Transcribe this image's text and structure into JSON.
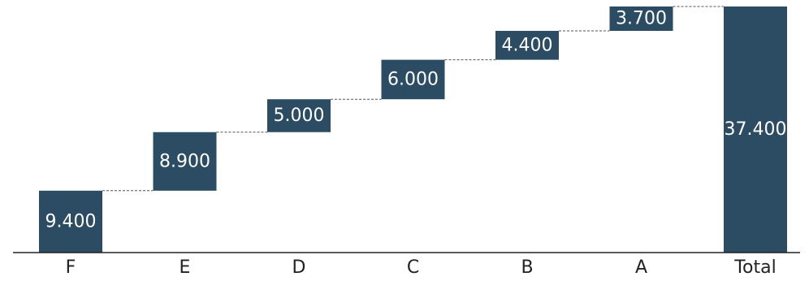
{
  "chart_data": {
    "type": "bar",
    "subtype": "waterfall",
    "categories": [
      "F",
      "E",
      "D",
      "C",
      "B",
      "A",
      "Total"
    ],
    "values": [
      9.4,
      8.9,
      5.0,
      6.0,
      4.4,
      3.7,
      37.4
    ],
    "labels": [
      "9.400",
      "8.900",
      "5.000",
      "6.000",
      "4.400",
      "3.700",
      "37.400"
    ],
    "total_index": 6,
    "ylim": [
      0,
      37.4
    ],
    "grid": false,
    "legend": "none",
    "connector_lines": true,
    "bar_color": "#2b4c63",
    "label_color": "#ffffff",
    "axis_color": "#222222",
    "connector_color": "#555555"
  }
}
